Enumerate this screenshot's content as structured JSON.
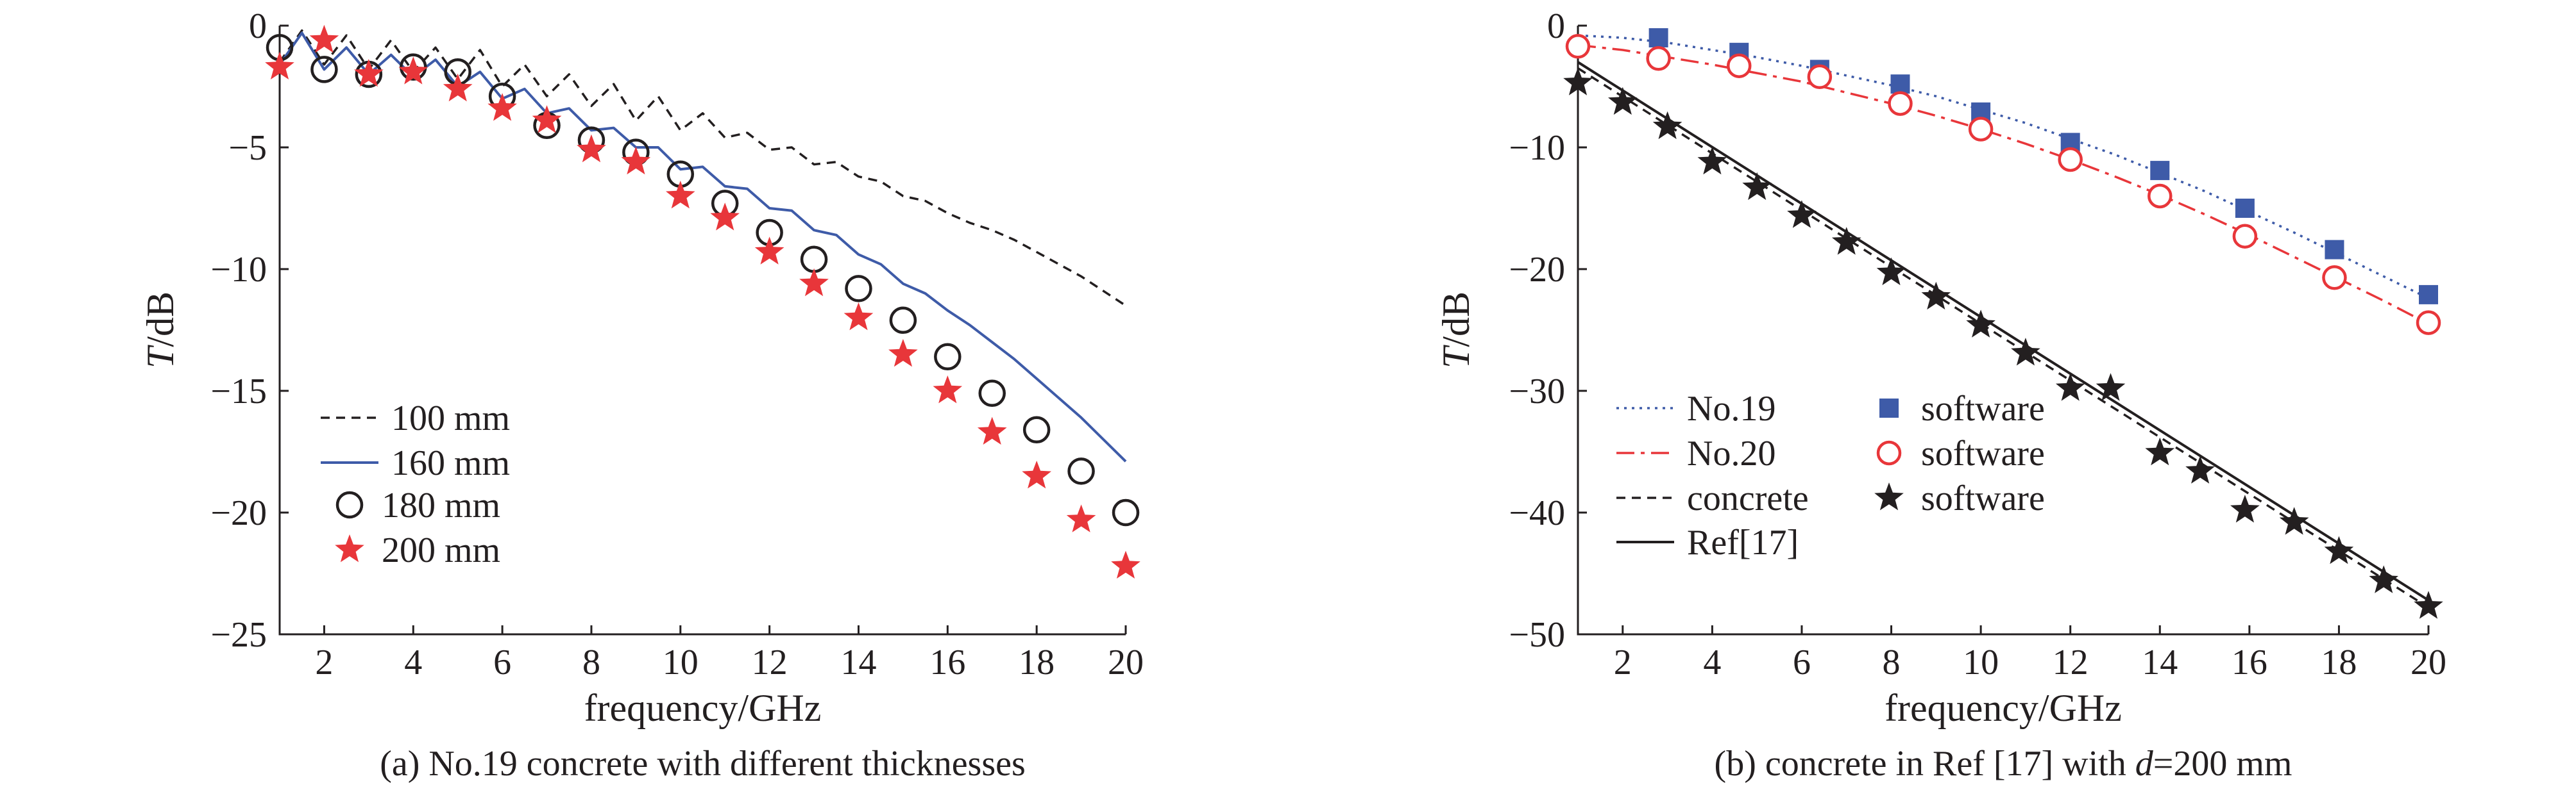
{
  "chart_data": [
    {
      "type": "line",
      "caption": "(a) No.19 concrete with different thicknesses",
      "xlabel": "frequency/GHz",
      "ylabel_var": "T",
      "ylabel_unit": "/dB",
      "xlim": [
        1,
        20
      ],
      "ylim": [
        -25,
        0
      ],
      "xticks": [
        2,
        4,
        6,
        8,
        10,
        12,
        14,
        16,
        18,
        20
      ],
      "yticks": [
        0,
        -5,
        -10,
        -15,
        -20,
        -25
      ],
      "ytick_labels": [
        "0",
        "−5",
        "−10",
        "−15",
        "−20",
        "−25"
      ],
      "legend_position": "lower-left",
      "series": [
        {
          "name": "100 mm",
          "style": "dashed",
          "color": "#231f20",
          "x": [
            1,
            1.5,
            2,
            2.5,
            3,
            3.5,
            4,
            4.5,
            5,
            5.5,
            6,
            6.5,
            7,
            7.5,
            8,
            8.5,
            9,
            9.5,
            10,
            10.5,
            11,
            11.5,
            12,
            12.5,
            13,
            13.5,
            14,
            14.5,
            15,
            15.5,
            16,
            16.5,
            17,
            17.5,
            18,
            18.5,
            19,
            19.5,
            20
          ],
          "y": [
            -1.5,
            -0.2,
            -1.6,
            -0.4,
            -1.8,
            -0.6,
            -1.9,
            -0.9,
            -2.2,
            -1.0,
            -2.5,
            -1.6,
            -2.9,
            -2.0,
            -3.3,
            -2.4,
            -3.9,
            -2.9,
            -4.3,
            -3.6,
            -4.6,
            -4.4,
            -5.1,
            -5.0,
            -5.7,
            -5.6,
            -6.2,
            -6.4,
            -7.0,
            -7.2,
            -7.7,
            -8.1,
            -8.4,
            -8.8,
            -9.3,
            -9.8,
            -10.3,
            -10.9,
            -11.5
          ]
        },
        {
          "name": "160 mm",
          "style": "solid",
          "color": "#3e5ba8",
          "x": [
            1,
            1.5,
            2,
            2.5,
            3,
            3.5,
            4,
            4.5,
            5,
            5.5,
            6,
            6.5,
            7,
            7.5,
            8,
            8.5,
            9,
            9.5,
            10,
            10.5,
            11,
            11.5,
            12,
            12.5,
            13,
            13.5,
            14,
            14.5,
            15,
            15.5,
            16,
            16.5,
            17,
            17.5,
            18,
            18.5,
            19,
            19.5,
            20
          ],
          "y": [
            -1.6,
            -0.3,
            -1.8,
            -0.9,
            -2.0,
            -1.2,
            -2.1,
            -1.4,
            -2.5,
            -1.9,
            -3.0,
            -2.6,
            -3.6,
            -3.4,
            -4.3,
            -4.2,
            -5.0,
            -5.0,
            -5.9,
            -5.8,
            -6.6,
            -6.7,
            -7.5,
            -7.6,
            -8.4,
            -8.6,
            -9.4,
            -9.8,
            -10.6,
            -11.0,
            -11.7,
            -12.3,
            -13.0,
            -13.7,
            -14.5,
            -15.3,
            -16.1,
            -17.0,
            -17.9
          ]
        },
        {
          "name": "180 mm",
          "marker": "circle",
          "x": [
            1,
            2,
            3,
            4,
            5,
            6,
            7,
            8,
            9,
            10,
            11,
            12,
            13,
            14,
            15,
            16,
            17,
            18,
            19,
            20
          ],
          "y": [
            -0.9,
            -1.8,
            -2.0,
            -1.7,
            -1.9,
            -2.9,
            -4.1,
            -4.7,
            -5.2,
            -6.1,
            -7.3,
            -8.5,
            -9.6,
            -10.8,
            -12.1,
            -13.6,
            -15.1,
            -16.6,
            -18.3,
            -20.0
          ]
        },
        {
          "name": "200 mm",
          "marker": "star",
          "color": "#e8363a",
          "x": [
            1,
            2,
            3,
            4,
            5,
            6,
            7,
            8,
            9,
            10,
            11,
            12,
            13,
            14,
            15,
            16,
            17,
            18,
            19,
            20
          ],
          "y": [
            -1.7,
            -0.6,
            -2.0,
            -1.9,
            -2.6,
            -3.4,
            -3.9,
            -5.1,
            -5.6,
            -7.0,
            -7.9,
            -9.3,
            -10.6,
            -12.0,
            -13.5,
            -15.0,
            -16.7,
            -18.5,
            -20.3,
            -22.2
          ]
        }
      ]
    },
    {
      "type": "line",
      "caption_prefix": "(b) concrete in Ref [17] with ",
      "caption_var": "d",
      "caption_suffix": "=200 mm",
      "xlabel": "frequency/GHz",
      "ylabel_var": "T",
      "ylabel_unit": "/dB",
      "xlim": [
        1,
        20
      ],
      "ylim": [
        -50,
        0
      ],
      "xticks": [
        2,
        4,
        6,
        8,
        10,
        12,
        14,
        16,
        18,
        20
      ],
      "yticks": [
        0,
        -10,
        -20,
        -30,
        -40,
        -50
      ],
      "ytick_labels": [
        "0",
        "−10",
        "−20",
        "−30",
        "−40",
        "−50"
      ],
      "legend_position": "lower-left",
      "series": [
        {
          "name": "No.19",
          "style": "dotted",
          "color": "#3e5ba8",
          "x": [
            1,
            2,
            3,
            4,
            5,
            6,
            7,
            8,
            9,
            10,
            11,
            12,
            13,
            14,
            15,
            16,
            17,
            18,
            19,
            20
          ],
          "y": [
            -0.8,
            -1.0,
            -1.4,
            -2.0,
            -2.6,
            -3.3,
            -4.1,
            -4.9,
            -5.8,
            -6.9,
            -8.0,
            -9.3,
            -10.6,
            -12.1,
            -13.6,
            -15.3,
            -17.0,
            -18.8,
            -20.6,
            -22.4
          ]
        },
        {
          "name": "No.20",
          "style": "dashdot",
          "color": "#e8363a",
          "x": [
            1,
            2,
            3,
            4,
            5,
            6,
            7,
            8,
            9,
            10,
            11,
            12,
            13,
            14,
            15,
            16,
            17,
            18,
            19,
            20
          ],
          "y": [
            -1.6,
            -2.0,
            -2.6,
            -3.2,
            -3.9,
            -4.6,
            -5.5,
            -6.4,
            -7.4,
            -8.5,
            -9.7,
            -11.0,
            -12.4,
            -13.9,
            -15.5,
            -17.2,
            -19.0,
            -20.8,
            -22.6,
            -24.5
          ]
        },
        {
          "name": "concrete",
          "style": "dashed",
          "color": "#231f20",
          "x": [
            1,
            20
          ],
          "y": [
            -3.5,
            -47.8
          ]
        },
        {
          "name": "Ref[17]",
          "style": "solid",
          "color": "#231f20",
          "x": [
            1,
            20
          ],
          "y": [
            -3.0,
            -47.2
          ]
        },
        {
          "name": "software",
          "marker": "square",
          "color": "#3e5ba8",
          "x": [
            2.8,
            4.6,
            6.4,
            8.2,
            10.0,
            12.0,
            14.0,
            15.9,
            17.9,
            20.0
          ],
          "y": [
            -1.0,
            -2.2,
            -3.6,
            -4.8,
            -7.1,
            -9.6,
            -11.9,
            -15.0,
            -18.4,
            -22.1
          ]
        },
        {
          "name": "software",
          "marker": "circle-open",
          "color": "#e8363a",
          "x": [
            1,
            2.8,
            4.6,
            6.4,
            8.2,
            10.0,
            12.0,
            14.0,
            15.9,
            17.9,
            20.0
          ],
          "y": [
            -1.7,
            -2.7,
            -3.3,
            -4.2,
            -6.4,
            -8.5,
            -11.0,
            -14.0,
            -17.3,
            -20.7,
            -24.4
          ]
        },
        {
          "name": "software",
          "marker": "star-filled",
          "color": "#231f20",
          "x": [
            1,
            2,
            3,
            4,
            5,
            6,
            7,
            8,
            9,
            10,
            11,
            12,
            12.9,
            14,
            14.9,
            15.9,
            17,
            18,
            19,
            20
          ],
          "y": [
            -4.7,
            -6.3,
            -8.3,
            -11.2,
            -13.3,
            -15.6,
            -17.8,
            -20.3,
            -22.3,
            -24.6,
            -26.9,
            -29.8,
            -29.8,
            -35.1,
            -36.6,
            -39.8,
            -40.8,
            -43.2,
            -45.6,
            -47.7
          ]
        }
      ]
    }
  ]
}
